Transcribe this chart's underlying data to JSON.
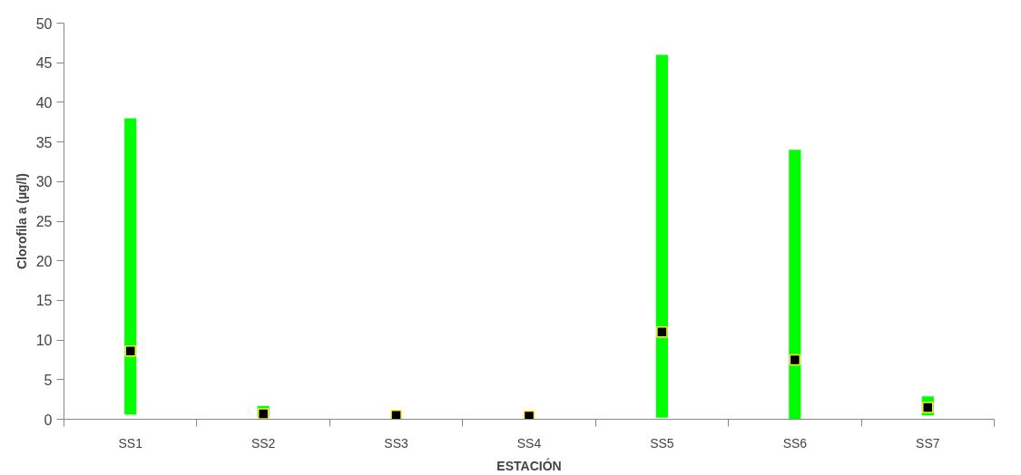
{
  "chart_data": {
    "type": "bar",
    "xlabel": "ESTACIÓN",
    "ylabel": "Clorofila a (µg/l)",
    "categories": [
      "SS1",
      "SS2",
      "SS3",
      "SS4",
      "SS5",
      "SS6",
      "SS7"
    ],
    "series": [
      {
        "color": "#00ff00",
        "base": [
          0.6,
          0.2,
          null,
          null,
          0.2,
          0.0,
          0.5
        ],
        "values": [
          37.4,
          1.5,
          null,
          null,
          45.8,
          34.0,
          2.4
        ]
      },
      {
        "type": "scatter",
        "color": "#000000",
        "marker": "square",
        "values": [
          8.6,
          0.7,
          0.5,
          0.4,
          11.0,
          7.5,
          1.5
        ]
      }
    ],
    "ylim": [
      0,
      50
    ],
    "yticks": [
      0,
      5,
      10,
      15,
      20,
      25,
      30,
      35,
      40,
      45,
      50
    ],
    "grid": false
  }
}
